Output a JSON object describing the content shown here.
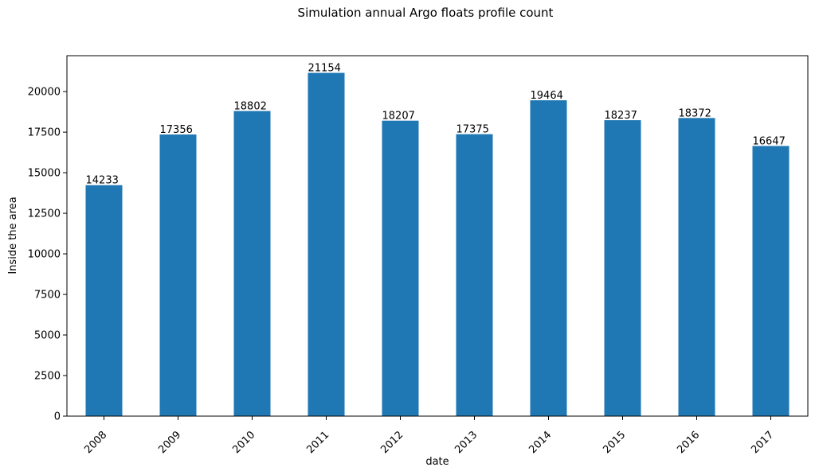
{
  "chart_data": {
    "type": "bar",
    "title": "Simulation annual Argo floats profile count",
    "xlabel": "date",
    "ylabel": "Inside the area",
    "categories": [
      "2008",
      "2009",
      "2010",
      "2011",
      "2012",
      "2013",
      "2014",
      "2015",
      "2016",
      "2017"
    ],
    "values": [
      14233,
      17356,
      18802,
      21154,
      18207,
      17375,
      19464,
      18237,
      18372,
      16647
    ],
    "value_labels": [
      "14233",
      "17356",
      "18802",
      "21154",
      "18207",
      "17375",
      "19464",
      "18237",
      "18372",
      "16647"
    ],
    "ylim": [
      0,
      22212
    ],
    "yticks": [
      0,
      2500,
      5000,
      7500,
      10000,
      12500,
      15000,
      17500,
      20000
    ],
    "ytick_labels": [
      "0",
      "2500",
      "5000",
      "7500",
      "10000",
      "12500",
      "15000",
      "17500",
      "20000"
    ],
    "bar_color": "#1f77b4",
    "grid": false,
    "legend": "none"
  }
}
